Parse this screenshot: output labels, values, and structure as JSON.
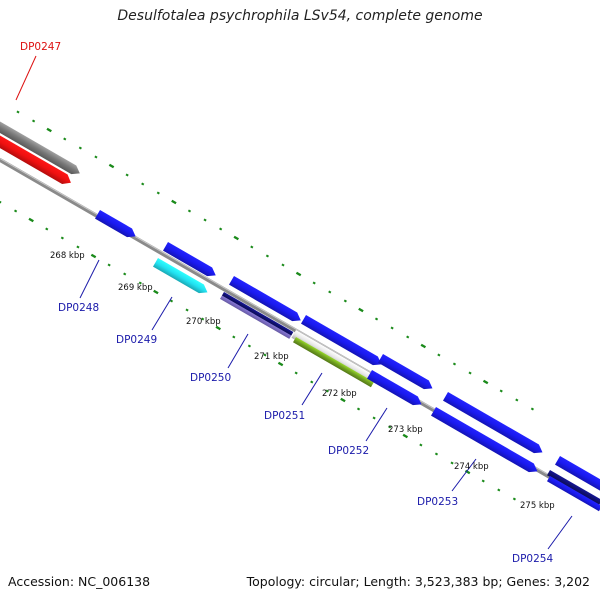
{
  "title": "Desulfotalea psychrophila LSv54, complete genome",
  "footer": {
    "accession": "Accession: NC_006138",
    "summary": "Topology: circular; Length: 3,523,383 bp; Genes: 3,202"
  },
  "colors": {
    "tick": "#1a8a1a",
    "backbone": "#8a8a8a",
    "gene_blue": "#1a1aee",
    "gene_red": "#ee1111",
    "gene_cyan": "#22e0f0",
    "gene_navy": "#101070",
    "gene_lavender": "#8878d8",
    "gene_white": "#e6e6e6",
    "gene_olive": "#70a020",
    "gene_gray": "#777777",
    "label_blue": "#1a1aaa",
    "label_red": "#dd1111"
  },
  "kbp_labels": [
    "268 kbp",
    "269 kbp",
    "270 kbp",
    "271 kbp",
    "272 kbp",
    "273 kbp",
    "274 kbp",
    "275 kbp"
  ],
  "gene_labels": [
    {
      "text": "DP0247",
      "color": "red"
    },
    {
      "text": "DP0248",
      "color": "blue"
    },
    {
      "text": "DP0249",
      "color": "blue"
    },
    {
      "text": "DP0250",
      "color": "blue"
    },
    {
      "text": "DP0251",
      "color": "blue"
    },
    {
      "text": "DP0252",
      "color": "blue"
    },
    {
      "text": "DP0253",
      "color": "blue"
    },
    {
      "text": "DP0254",
      "color": "blue"
    }
  ]
}
